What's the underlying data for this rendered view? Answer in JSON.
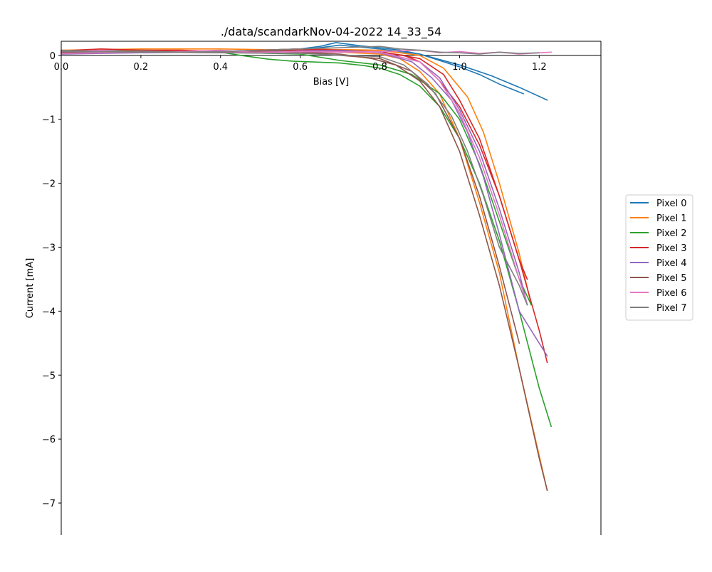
{
  "chart_data": {
    "type": "line",
    "title": "./data/scandarkNov-04-2022 14_33_54",
    "xlabel": "Bias [V]",
    "ylabel": "Current [mA]",
    "xlim": [
      0.0,
      1.355
    ],
    "ylim": [
      -7.5,
      0.22
    ],
    "x_ticks": [
      0.0,
      0.2,
      0.4,
      0.6,
      0.8,
      1.0,
      1.2
    ],
    "x_tick_labels": [
      "0.0",
      "0.2",
      "0.4",
      "0.6",
      "0.8",
      "1.0",
      "1.2"
    ],
    "y_ticks": [
      0,
      -1,
      -2,
      -3,
      -4,
      -5,
      -6,
      -7
    ],
    "y_tick_labels": [
      "0",
      "−1",
      "−2",
      "−3",
      "−4",
      "−5",
      "−6",
      "−7"
    ],
    "grid": false,
    "legend_position": "right, outside plot",
    "series": [
      {
        "name": "Pixel 0",
        "color": "#1f77b4",
        "sweeps": [
          {
            "x": [
              0.0,
              0.1,
              0.2,
              0.3,
              0.4,
              0.5,
              0.6,
              0.65,
              0.69,
              0.75,
              0.8,
              0.85,
              0.9,
              0.95,
              1.0,
              1.05,
              1.1,
              1.16
            ],
            "y": [
              0.05,
              0.07,
              0.08,
              0.06,
              0.06,
              0.08,
              0.1,
              0.14,
              0.2,
              0.15,
              0.12,
              0.08,
              0.02,
              -0.08,
              -0.18,
              -0.3,
              -0.45,
              -0.6
            ]
          },
          {
            "x": [
              0.0,
              0.2,
              0.4,
              0.6,
              0.7,
              0.8,
              0.9,
              1.0,
              1.08,
              1.15,
              1.22
            ],
            "y": [
              0.04,
              0.06,
              0.05,
              0.08,
              0.16,
              0.1,
              0.02,
              -0.15,
              -0.32,
              -0.5,
              -0.7
            ]
          }
        ]
      },
      {
        "name": "Pixel 1",
        "color": "#ff7f0e",
        "sweeps": [
          {
            "x": [
              0.0,
              0.2,
              0.4,
              0.6,
              0.7,
              0.8,
              0.85,
              0.9,
              0.95,
              1.0,
              1.05,
              1.1,
              1.15,
              1.22
            ],
            "y": [
              0.08,
              0.1,
              0.1,
              0.08,
              0.05,
              0.02,
              -0.05,
              -0.25,
              -0.6,
              -1.3,
              -2.3,
              -3.4,
              -4.9,
              -6.8
            ]
          },
          {
            "x": [
              0.0,
              0.2,
              0.4,
              0.6,
              0.8,
              0.9,
              0.96,
              1.02,
              1.06,
              1.1,
              1.15,
              1.18
            ],
            "y": [
              0.06,
              0.08,
              0.06,
              0.1,
              0.08,
              0.0,
              -0.2,
              -0.65,
              -1.2,
              -2.0,
              -3.1,
              -3.9
            ]
          }
        ]
      },
      {
        "name": "Pixel 2",
        "color": "#2ca02c",
        "sweeps": [
          {
            "x": [
              0.0,
              0.1,
              0.2,
              0.3,
              0.4,
              0.45,
              0.52,
              0.58,
              0.62,
              0.7,
              0.76,
              0.8,
              0.85,
              0.9,
              0.95,
              1.0,
              1.05,
              1.1,
              1.15,
              1.2,
              1.23
            ],
            "y": [
              0.05,
              0.08,
              0.06,
              0.05,
              0.05,
              0.0,
              -0.06,
              -0.09,
              -0.1,
              -0.12,
              -0.16,
              -0.2,
              -0.3,
              -0.48,
              -0.8,
              -1.3,
              -2.0,
              -2.9,
              -4.0,
              -5.2,
              -5.8
            ]
          },
          {
            "x": [
              0.0,
              0.2,
              0.4,
              0.6,
              0.7,
              0.8,
              0.88,
              0.95,
              1.0,
              1.05,
              1.1,
              1.15,
              1.18
            ],
            "y": [
              0.04,
              0.06,
              0.05,
              0.02,
              -0.08,
              -0.15,
              -0.3,
              -0.6,
              -1.0,
              -1.7,
              -2.6,
              -3.5,
              -3.9
            ]
          }
        ]
      },
      {
        "name": "Pixel 3",
        "color": "#d62728",
        "sweeps": [
          {
            "x": [
              0.0,
              0.1,
              0.2,
              0.3,
              0.4,
              0.5,
              0.6,
              0.7,
              0.8,
              0.86,
              0.9,
              0.95,
              1.0,
              1.05,
              1.1,
              1.15,
              1.2,
              1.22
            ],
            "y": [
              0.07,
              0.1,
              0.08,
              0.08,
              0.06,
              0.08,
              0.1,
              0.08,
              0.05,
              0.0,
              -0.1,
              -0.4,
              -0.8,
              -1.4,
              -2.2,
              -3.2,
              -4.3,
              -4.8
            ]
          },
          {
            "x": [
              0.0,
              0.2,
              0.4,
              0.6,
              0.8,
              0.9,
              0.96,
              1.0,
              1.05,
              1.1,
              1.15,
              1.17
            ],
            "y": [
              0.05,
              0.07,
              0.06,
              0.08,
              0.06,
              -0.05,
              -0.3,
              -0.7,
              -1.3,
              -2.2,
              -3.2,
              -3.5
            ]
          }
        ]
      },
      {
        "name": "Pixel 4",
        "color": "#9467bd",
        "sweeps": [
          {
            "x": [
              0.0,
              0.1,
              0.2,
              0.3,
              0.4,
              0.5,
              0.6,
              0.7,
              0.8,
              0.88,
              0.93,
              0.98,
              1.02,
              1.06,
              1.1,
              1.15,
              1.22
            ],
            "y": [
              0.03,
              0.05,
              0.04,
              0.05,
              0.06,
              0.05,
              0.07,
              0.08,
              0.04,
              -0.1,
              -0.35,
              -0.7,
              -1.2,
              -1.9,
              -2.8,
              -4.0,
              -4.7
            ]
          },
          {
            "x": [
              0.0,
              0.2,
              0.4,
              0.6,
              0.8,
              0.9,
              0.95,
              1.0,
              1.05,
              1.1,
              1.15,
              1.17
            ],
            "y": [
              0.02,
              0.04,
              0.05,
              0.06,
              0.05,
              -0.1,
              -0.35,
              -0.85,
              -1.5,
              -2.4,
              -3.4,
              -3.9
            ]
          }
        ]
      },
      {
        "name": "Pixel 5",
        "color": "#8c564b",
        "sweeps": [
          {
            "x": [
              0.0,
              0.1,
              0.2,
              0.3,
              0.4,
              0.5,
              0.6,
              0.7,
              0.78,
              0.84,
              0.9,
              0.95,
              1.0,
              1.05,
              1.1,
              1.15,
              1.2,
              1.22
            ],
            "y": [
              0.04,
              0.06,
              0.05,
              0.06,
              0.05,
              0.08,
              0.06,
              0.02,
              -0.05,
              -0.15,
              -0.4,
              -0.8,
              -1.5,
              -2.5,
              -3.6,
              -4.9,
              -6.3,
              -6.8
            ]
          },
          {
            "x": [
              0.0,
              0.2,
              0.4,
              0.6,
              0.7,
              0.8,
              0.88,
              0.94,
              1.0,
              1.05,
              1.1,
              1.15
            ],
            "y": [
              0.03,
              0.05,
              0.06,
              0.05,
              0.0,
              -0.05,
              -0.25,
              -0.6,
              -1.3,
              -2.2,
              -3.3,
              -4.5
            ]
          }
        ]
      },
      {
        "name": "Pixel 6",
        "color": "#e377c2",
        "sweeps": [
          {
            "x": [
              0.0,
              0.1,
              0.2,
              0.3,
              0.4,
              0.5,
              0.6,
              0.7,
              0.8,
              0.9,
              0.95,
              1.0,
              1.05,
              1.1,
              1.15,
              1.2,
              1.23
            ],
            "y": [
              0.06,
              0.08,
              0.05,
              0.06,
              0.08,
              0.04,
              0.06,
              0.05,
              0.06,
              0.08,
              0.04,
              0.06,
              0.03,
              0.05,
              0.02,
              0.04,
              0.05
            ]
          },
          {
            "x": [
              0.0,
              0.2,
              0.4,
              0.6,
              0.8,
              0.9,
              0.95,
              1.0,
              1.05,
              1.1,
              1.15,
              1.17
            ],
            "y": [
              0.03,
              0.05,
              0.04,
              0.06,
              0.05,
              -0.1,
              -0.4,
              -0.9,
              -1.6,
              -2.5,
              -3.5,
              -3.9
            ]
          }
        ]
      },
      {
        "name": "Pixel 7",
        "color": "#7f7f7f",
        "sweeps": [
          {
            "x": [
              0.0,
              0.1,
              0.2,
              0.3,
              0.4,
              0.5,
              0.6,
              0.7,
              0.8,
              0.85,
              0.9,
              0.95,
              1.0,
              1.05,
              1.1,
              1.15,
              1.2
            ],
            "y": [
              0.08,
              0.06,
              0.07,
              0.05,
              0.06,
              0.08,
              0.1,
              0.12,
              0.14,
              0.1,
              0.08,
              0.05,
              0.04,
              0.02,
              0.05,
              0.03,
              0.04
            ]
          },
          {
            "x": [
              0.0,
              0.2,
              0.4,
              0.6,
              0.8,
              0.86,
              0.92,
              0.98,
              1.02,
              1.06,
              1.1,
              1.15,
              1.17
            ],
            "y": [
              0.06,
              0.05,
              0.04,
              0.03,
              -0.02,
              -0.15,
              -0.45,
              -0.95,
              -1.5,
              -2.2,
              -3.0,
              -3.6,
              -3.9
            ]
          }
        ]
      }
    ]
  }
}
